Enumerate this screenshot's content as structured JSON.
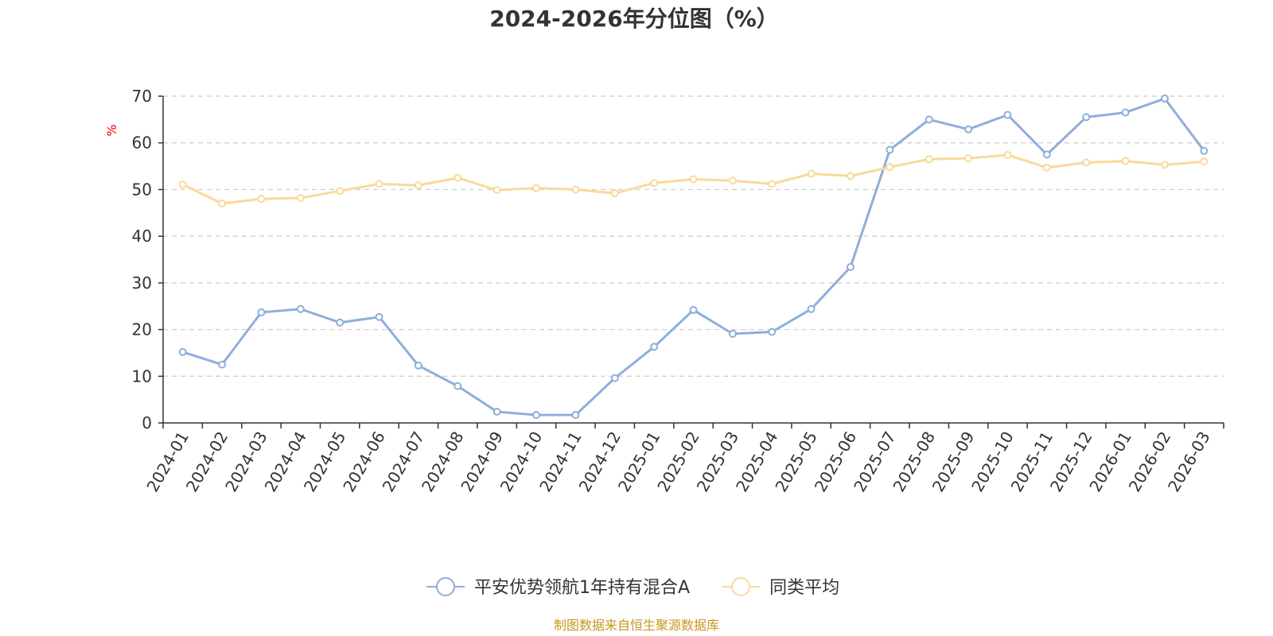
{
  "chart_data": {
    "type": "line",
    "title": "2024-2026年分位图（%）",
    "ylabel": "%",
    "ylim": [
      0,
      70
    ],
    "yticks": [
      0,
      10,
      20,
      30,
      40,
      50,
      60,
      70
    ],
    "grid": true,
    "legend_position": "bottom",
    "categories": [
      "2024-01",
      "2024-02",
      "2024-03",
      "2024-04",
      "2024-05",
      "2024-06",
      "2024-07",
      "2024-08",
      "2024-09",
      "2024-10",
      "2024-11",
      "2024-12",
      "2025-01",
      "2025-02",
      "2025-03",
      "2025-04",
      "2025-05",
      "2025-06",
      "2025-07",
      "2025-08",
      "2025-09",
      "2025-10",
      "2025-11",
      "2025-12",
      "2026-01",
      "2026-02",
      "2026-03"
    ],
    "series": [
      {
        "name": "平安优势领航1年持有混合A",
        "color": "#8faedb",
        "values": [
          15.2,
          12.5,
          23.7,
          24.4,
          21.5,
          22.7,
          12.3,
          7.9,
          2.4,
          1.7,
          1.7,
          9.6,
          16.3,
          24.2,
          19.1,
          19.5,
          24.4,
          33.4,
          58.5,
          65.0,
          62.9,
          66.0,
          57.5,
          65.5,
          66.5,
          69.5,
          58.3
        ]
      },
      {
        "name": "同类平均",
        "color": "#fad999",
        "values": [
          51.1,
          47.0,
          48.0,
          48.2,
          49.7,
          51.2,
          50.9,
          52.5,
          49.9,
          50.3,
          50.0,
          49.2,
          51.4,
          52.2,
          51.9,
          51.2,
          53.4,
          52.9,
          54.8,
          56.5,
          56.7,
          57.4,
          54.7,
          55.8,
          56.1,
          55.3,
          56.0
        ]
      }
    ],
    "source": "制图数据来自恒生聚源数据库"
  }
}
